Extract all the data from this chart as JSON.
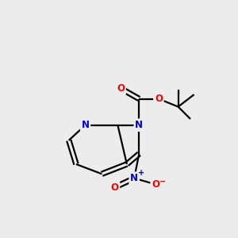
{
  "background_color": "#ececec",
  "bond_color": "#000000",
  "atom_colors": {
    "N": "#0000cc",
    "O": "#ff0000",
    "C": "#000000"
  },
  "bond_width": 1.6,
  "figsize": [
    3.0,
    3.0
  ],
  "dpi": 100
}
